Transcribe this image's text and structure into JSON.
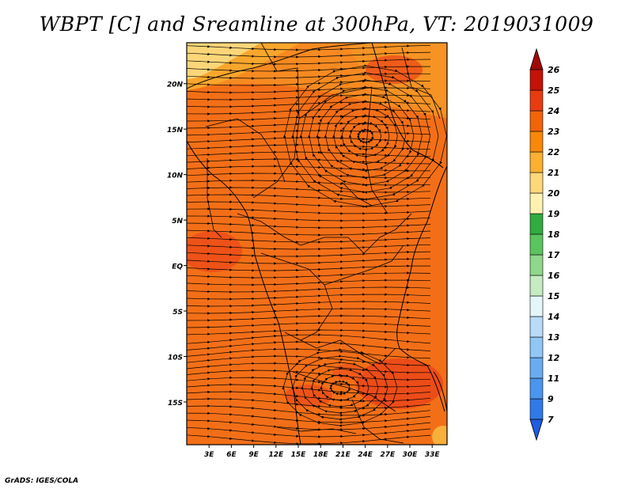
{
  "title": "WBPT [C] and Sreamline at 300hPa, VT: 2019031009",
  "credit": "GrADS: IGES/COLA",
  "map": {
    "lat_labels": [
      "20N",
      "15N",
      "10N",
      "5N",
      "EQ",
      "5S",
      "10S",
      "15S"
    ],
    "lon_labels": [
      "3E",
      "6E",
      "9E",
      "12E",
      "15E",
      "18E",
      "21E",
      "24E",
      "27E",
      "30E",
      "33E"
    ],
    "lat_values": [
      20,
      15,
      10,
      5,
      0,
      -5,
      -10,
      -15
    ],
    "lon_values": [
      3,
      6,
      9,
      12,
      15,
      18,
      21,
      24,
      27,
      30,
      33
    ],
    "lat_range": [
      -19.7,
      24.5
    ],
    "lon_range": [
      0,
      35
    ]
  },
  "colorbar": {
    "labels": [
      "7",
      "9",
      "11",
      "12",
      "13",
      "14",
      "15",
      "16",
      "17",
      "18",
      "19",
      "20",
      "21",
      "22",
      "23",
      "24",
      "25",
      "26"
    ],
    "colors": [
      "#1f5ce0",
      "#2f7ae8",
      "#4a96ee",
      "#6aacf2",
      "#92c6f5",
      "#b8dcf8",
      "#e4f6f8",
      "#c4ecc0",
      "#8ed88c",
      "#5ac45e",
      "#30ac40",
      "#fff2b0",
      "#fdd878",
      "#fbb030",
      "#f88808",
      "#f26408",
      "#e83c10",
      "#c41208",
      "#a00808"
    ]
  },
  "colors": {
    "field_main": "#f36f17",
    "field_warm": "#ee5218",
    "field_cool": "#f7a22a",
    "field_pale": "#fbe18a"
  }
}
